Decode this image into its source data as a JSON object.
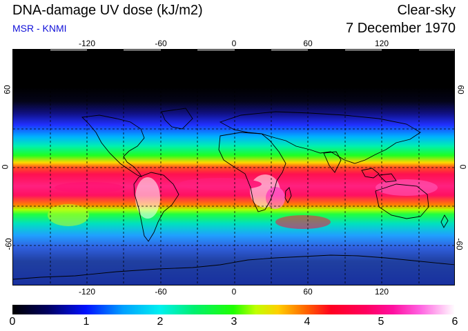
{
  "title": "DNA-damage UV dose (kJ/m2)",
  "sky_condition": "Clear-sky",
  "date": "7 December 1970",
  "credit": "MSR - KNMI",
  "colors": {
    "credit": "#1010d8",
    "frame": "#000000",
    "coastline": "#000000",
    "gridline": "#000000"
  },
  "map": {
    "lon_ticks": [
      "-120",
      "-60",
      "0",
      "60",
      "120"
    ],
    "lat_ticks_left": [
      "60",
      "0",
      "-60"
    ],
    "lat_ticks_right": [
      "60",
      "0",
      "-60"
    ],
    "gridline_style": "dashed"
  },
  "colorbar": {
    "labels": [
      "0",
      "1",
      "2",
      "3",
      "4",
      "5",
      "6"
    ],
    "min": 0,
    "max": 6,
    "units": "kJ/m2"
  }
}
